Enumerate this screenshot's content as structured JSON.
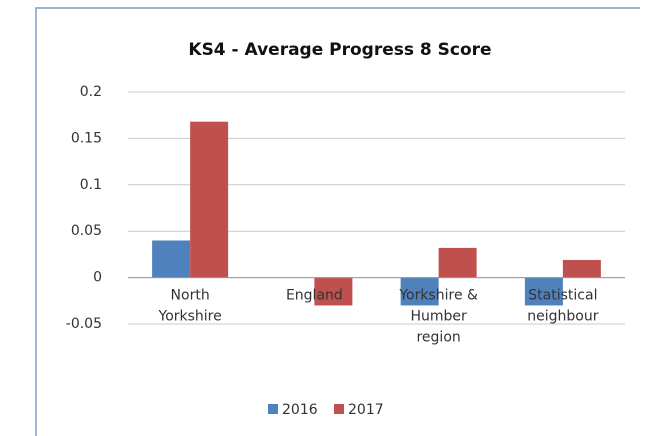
{
  "chart_data": {
    "type": "bar",
    "title": "KS4 - Average Progress 8 Score",
    "categories": [
      "North Yorkshire",
      "England",
      "Yorkshire & Humber region",
      "Statistical neighbour"
    ],
    "series": [
      {
        "name": "2016",
        "color": "#4f81bd",
        "values": [
          0.04,
          0,
          -0.03,
          -0.03
        ]
      },
      {
        "name": "2017",
        "color": "#c0504d",
        "values": [
          0.168,
          -0.03,
          0.032,
          0.019
        ]
      }
    ],
    "ylim": [
      -0.05,
      0.2
    ],
    "yticks": [
      -0.05,
      0,
      0.05,
      0.1,
      0.15,
      0.2
    ],
    "grid": true,
    "legend": "bottom"
  }
}
